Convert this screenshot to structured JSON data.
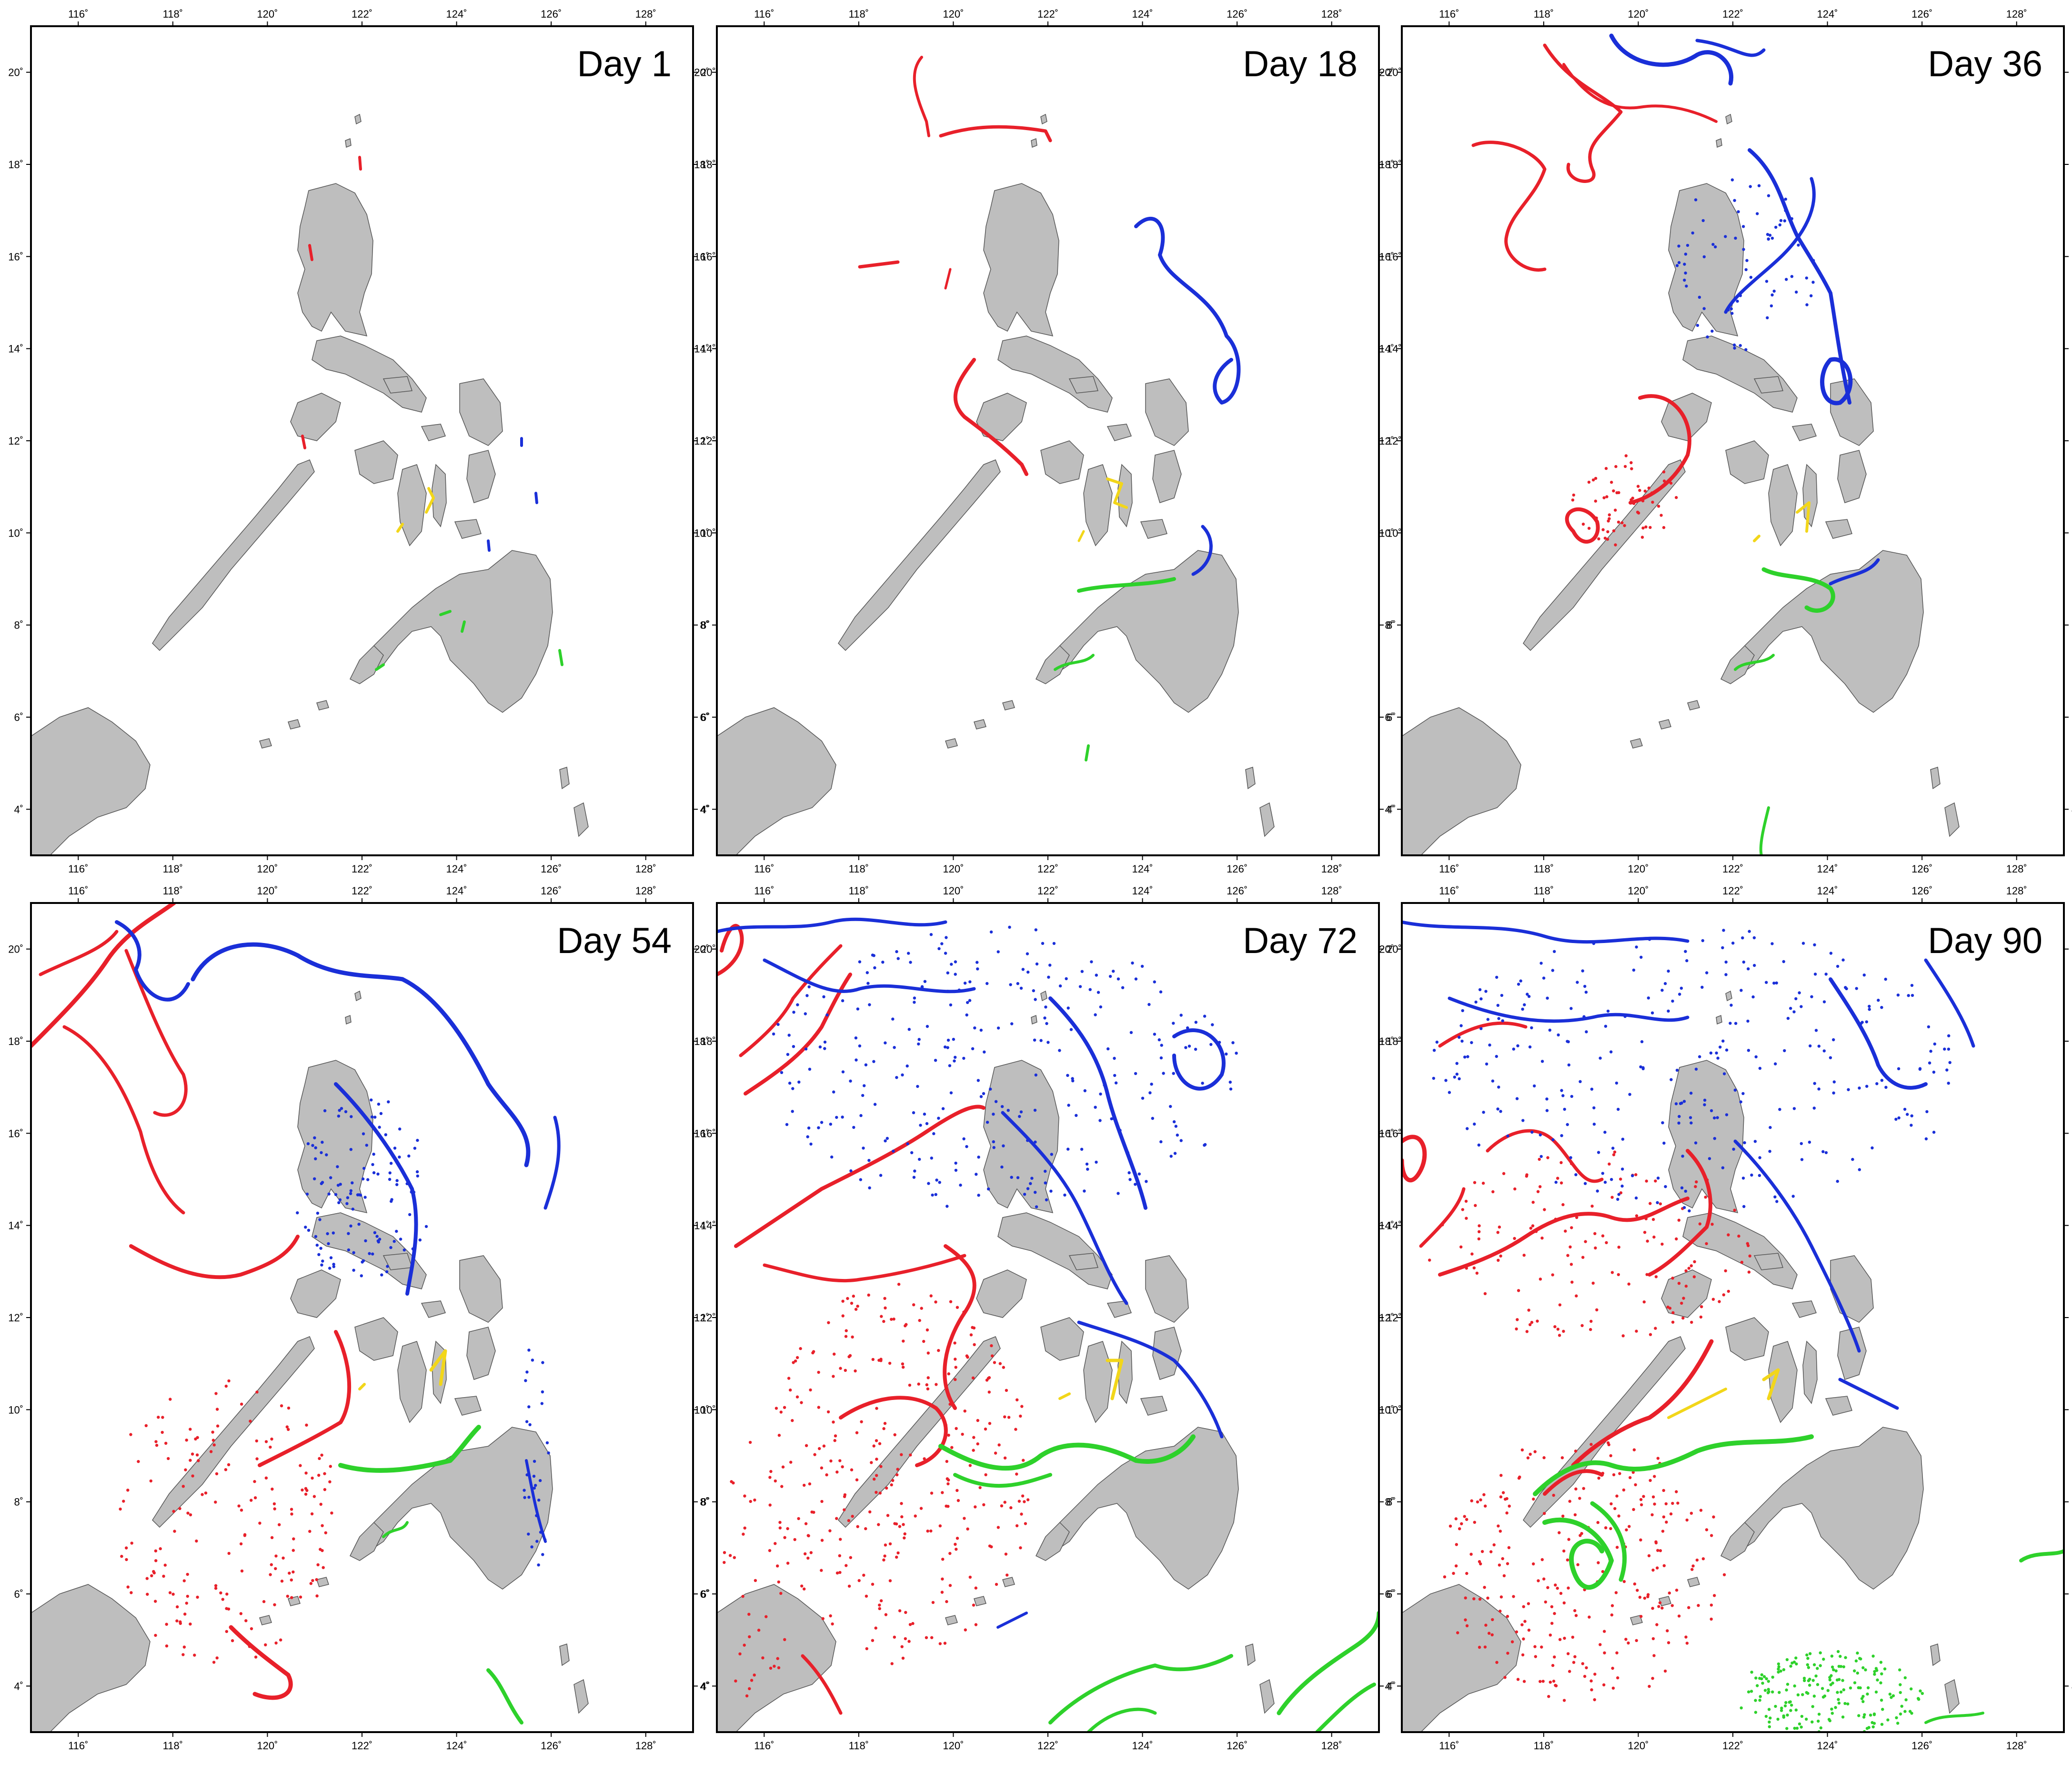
{
  "figure": {
    "panels": [
      {
        "id": "day-1",
        "label": "Day 1"
      },
      {
        "id": "day-18",
        "label": "Day 18"
      },
      {
        "id": "day-36",
        "label": "Day 36"
      },
      {
        "id": "day-54",
        "label": "Day 54"
      },
      {
        "id": "day-72",
        "label": "Day 72"
      },
      {
        "id": "day-90",
        "label": "Day 90"
      }
    ],
    "x_ticks": [
      "116˚",
      "118˚",
      "120˚",
      "122˚",
      "124˚",
      "126˚",
      "128˚"
    ],
    "y_ticks": [
      "4˚",
      "6˚",
      "8˚",
      "10˚",
      "12˚",
      "14˚",
      "16˚",
      "18˚",
      "20˚"
    ],
    "lon_values": [
      116,
      118,
      120,
      122,
      124,
      126,
      128
    ],
    "lat_values": [
      4,
      6,
      8,
      10,
      12,
      14,
      16,
      18,
      20
    ],
    "lon_range": [
      115,
      129
    ],
    "lat_range": [
      3,
      21
    ],
    "land_color": "#bebebe",
    "colors": {
      "red": "#e8202a",
      "blue": "#1a2fd8",
      "green": "#2ed12b",
      "yellow": "#f2d61a"
    }
  }
}
